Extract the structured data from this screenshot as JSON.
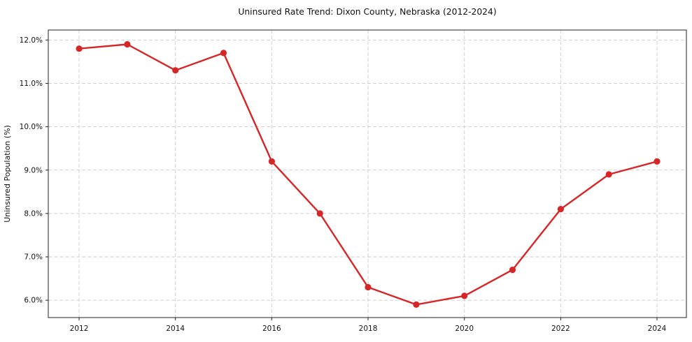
{
  "chart_data": {
    "type": "line",
    "title": "Uninsured Rate Trend: Dixon County, Nebraska (2012-2024)",
    "xlabel": "",
    "ylabel": "Uninsured Population (%)",
    "x": [
      2012,
      2013,
      2014,
      2015,
      2016,
      2017,
      2018,
      2019,
      2020,
      2021,
      2022,
      2023,
      2024
    ],
    "series": [
      {
        "name": "Uninsured rate",
        "values": [
          11.8,
          11.9,
          11.3,
          11.7,
          9.2,
          8.0,
          6.3,
          5.9,
          6.1,
          6.7,
          8.1,
          8.9,
          9.2
        ],
        "color": "#d62728",
        "marker": "circle",
        "line_width": 2.4,
        "marker_radius": 4.6
      }
    ],
    "xticks": [
      2012,
      2014,
      2016,
      2018,
      2020,
      2022,
      2024
    ],
    "xtick_labels": [
      "2012",
      "2014",
      "2016",
      "2018",
      "2020",
      "2022",
      "2024"
    ],
    "yticks": [
      6,
      7,
      8,
      9,
      10,
      11,
      12
    ],
    "ytick_labels": [
      "6.0%",
      "7.0%",
      "8.0%",
      "9.0%",
      "10.0%",
      "11.0%",
      "12.0%"
    ],
    "xlim": [
      2011.36,
      2024.61
    ],
    "ylim": [
      5.6,
      12.23
    ],
    "grid": true,
    "grid_style": "dashed",
    "grid_color": "#cccccc",
    "legend": false,
    "legend_position": "none",
    "background": "#ffffff",
    "axis_color": "#222222",
    "text_color": "#111111"
  }
}
